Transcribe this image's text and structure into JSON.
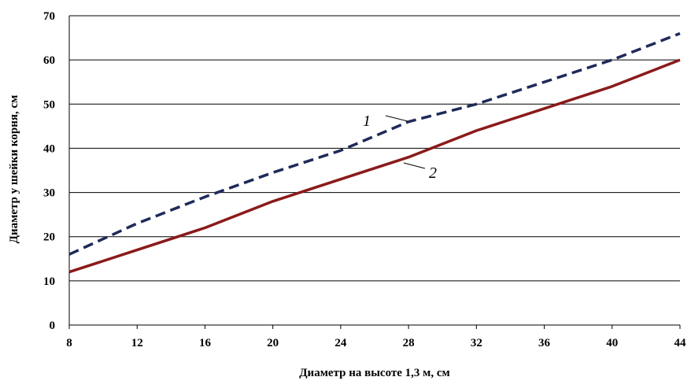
{
  "chart_data": {
    "type": "line",
    "title": "",
    "xlabel": "Диаметр  на высоте  1,3 м, см",
    "ylabel": "Диаметр  у шейки  корня,  см",
    "xlim": [
      8,
      44
    ],
    "ylim": [
      0,
      70
    ],
    "x_ticks": [
      "8",
      "12",
      "16",
      "20",
      "24",
      "28",
      "32",
      "36",
      "40",
      "44"
    ],
    "y_ticks": [
      "0",
      "10",
      "20",
      "30",
      "40",
      "50",
      "60",
      "70"
    ],
    "grid": "horizontal",
    "legend": "none",
    "series": [
      {
        "label": "1",
        "style": "dashed",
        "color": "#1f2a5a",
        "x": [
          8,
          12,
          16,
          20,
          24,
          28,
          32,
          36,
          40,
          44
        ],
        "y": [
          16,
          23,
          29,
          34.5,
          39.5,
          46,
          50,
          55,
          60,
          66
        ]
      },
      {
        "label": "2",
        "style": "solid",
        "color": "#8b1a1a",
        "x": [
          8,
          12,
          16,
          20,
          24,
          28,
          32,
          36,
          40,
          44
        ],
        "y": [
          12,
          17,
          22,
          28,
          33,
          38,
          44,
          49,
          54,
          60
        ]
      }
    ]
  }
}
